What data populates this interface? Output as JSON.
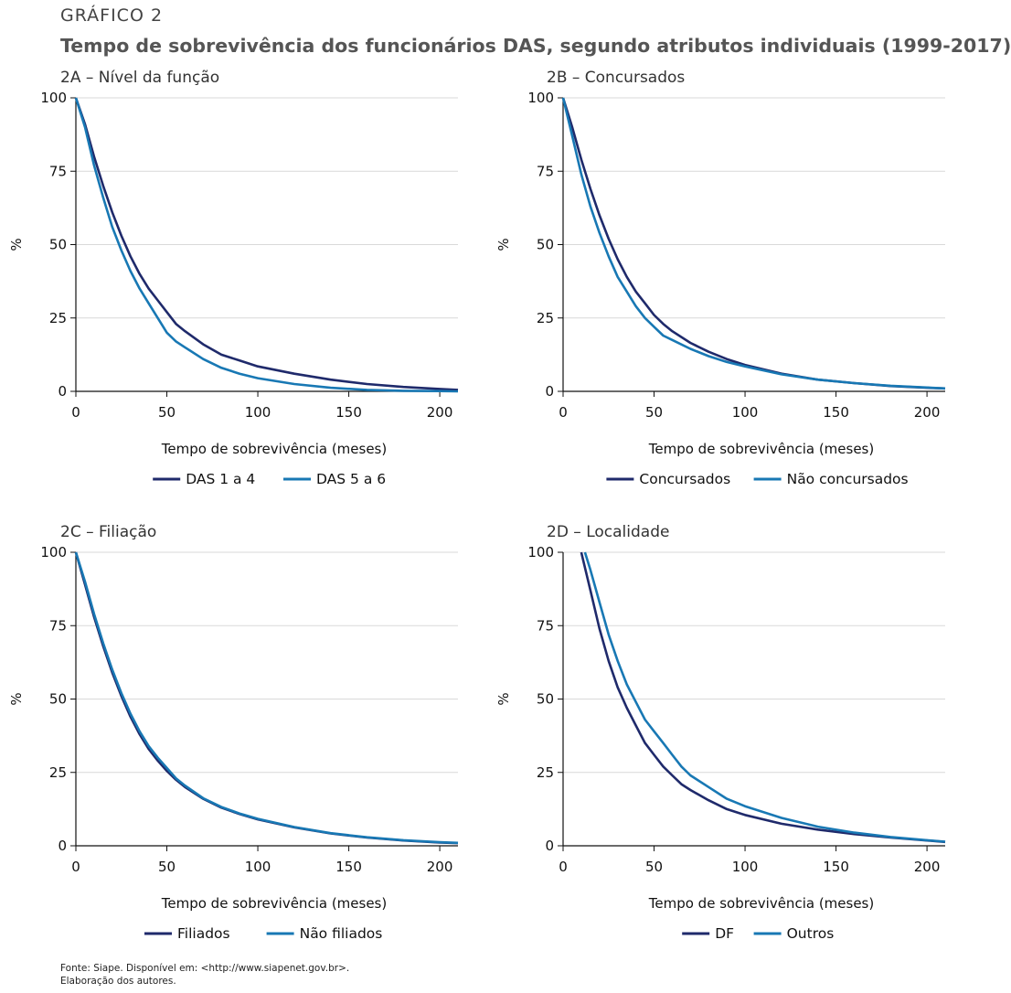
{
  "header": {
    "kicker": "GRÁFICO 2",
    "title": "Tempo de sobrevivência dos funcionários DAS, segundo atributos individuais (1999-2017)"
  },
  "footer": {
    "source": "Fonte: Siape. Disponível em: <http://www.siapenet.gov.br>.",
    "note": "Elaboração dos autores."
  },
  "colors": {
    "dark": "#1f2a6b",
    "light": "#1878b4",
    "grid": "#d9d9d9"
  },
  "chart_data": [
    {
      "type": "line",
      "title": "2A – Nível da função",
      "xlabel": "Tempo de sobrevivência (meses)",
      "ylabel": "%",
      "xlim": [
        0,
        210
      ],
      "ylim": [
        0,
        100
      ],
      "xticks": [
        0,
        50,
        100,
        150,
        200
      ],
      "yticks": [
        0,
        25,
        50,
        75,
        100
      ],
      "grid": true,
      "legend_position": "bottom",
      "series": [
        {
          "name": "DAS 1 a 4",
          "color": "#1f2a6b",
          "x": [
            0,
            5,
            10,
            15,
            20,
            25,
            30,
            35,
            40,
            45,
            50,
            55,
            60,
            70,
            80,
            90,
            100,
            120,
            140,
            160,
            180,
            200,
            210
          ],
          "y": [
            100,
            91,
            80,
            70,
            61,
            53,
            46,
            40,
            35,
            31,
            27,
            23,
            20.5,
            16,
            12.5,
            10.5,
            8.5,
            6,
            4,
            2.5,
            1.5,
            0.8,
            0.5
          ]
        },
        {
          "name": "DAS 5 a 6",
          "color": "#1878b4",
          "x": [
            0,
            5,
            10,
            15,
            20,
            25,
            30,
            35,
            40,
            45,
            50,
            55,
            60,
            70,
            80,
            90,
            100,
            120,
            140,
            160,
            180,
            200,
            210
          ],
          "y": [
            100,
            90,
            77,
            66,
            56,
            48,
            41,
            35,
            30,
            25,
            20,
            17,
            15,
            11,
            8,
            6,
            4.5,
            2.5,
            1.2,
            0.5,
            0.2,
            0.1,
            0
          ]
        }
      ]
    },
    {
      "type": "line",
      "title": "2B – Concursados",
      "xlabel": "Tempo de sobrevivência (meses)",
      "ylabel": "%",
      "xlim": [
        0,
        210
      ],
      "ylim": [
        0,
        100
      ],
      "xticks": [
        0,
        50,
        100,
        150,
        200
      ],
      "yticks": [
        0,
        25,
        50,
        75,
        100
      ],
      "grid": true,
      "legend_position": "bottom",
      "series": [
        {
          "name": "Concursados",
          "color": "#1f2a6b",
          "x": [
            0,
            5,
            10,
            15,
            20,
            25,
            30,
            35,
            40,
            45,
            50,
            55,
            60,
            70,
            80,
            90,
            100,
            120,
            140,
            160,
            180,
            200,
            210
          ],
          "y": [
            100,
            90,
            79,
            69,
            60,
            52,
            45,
            39,
            34,
            30,
            26,
            23,
            20.5,
            16.5,
            13.5,
            11,
            9,
            6,
            4,
            2.8,
            1.8,
            1.2,
            1
          ]
        },
        {
          "name": "Não concursados",
          "color": "#1878b4",
          "x": [
            0,
            5,
            10,
            15,
            20,
            25,
            30,
            35,
            40,
            45,
            50,
            55,
            60,
            70,
            80,
            90,
            100,
            120,
            140,
            160,
            180,
            200,
            210
          ],
          "y": [
            100,
            87,
            74,
            63,
            54,
            46,
            39,
            34,
            29,
            25,
            22,
            19,
            17.5,
            14.5,
            12,
            10,
            8.5,
            5.8,
            4,
            2.8,
            1.9,
            1.3,
            1
          ]
        }
      ]
    },
    {
      "type": "line",
      "title": "2C – Filiação",
      "xlabel": "Tempo de sobrevivência (meses)",
      "ylabel": "%",
      "xlim": [
        0,
        210
      ],
      "ylim": [
        0,
        100
      ],
      "xticks": [
        0,
        50,
        100,
        150,
        200
      ],
      "yticks": [
        0,
        25,
        50,
        75,
        100
      ],
      "grid": true,
      "legend_position": "bottom",
      "series": [
        {
          "name": "Filiados",
          "color": "#1f2a6b",
          "x": [
            0,
            5,
            10,
            15,
            20,
            25,
            30,
            35,
            40,
            45,
            50,
            55,
            60,
            70,
            80,
            90,
            100,
            120,
            140,
            160,
            180,
            200,
            210
          ],
          "y": [
            100,
            89,
            78,
            68,
            59,
            51,
            44,
            38,
            33,
            29,
            25.5,
            22.5,
            20,
            16,
            13,
            10.8,
            9,
            6.3,
            4.2,
            2.8,
            1.8,
            1.1,
            0.9
          ]
        },
        {
          "name": "Não filiados",
          "color": "#1878b4",
          "x": [
            0,
            5,
            10,
            15,
            20,
            25,
            30,
            35,
            40,
            45,
            50,
            55,
            60,
            70,
            80,
            90,
            100,
            120,
            140,
            160,
            180,
            200,
            210
          ],
          "y": [
            100,
            90,
            79,
            69,
            60,
            52,
            45,
            39,
            34,
            30,
            26.5,
            23,
            20.5,
            16.2,
            13.2,
            11,
            9.2,
            6.4,
            4.3,
            2.9,
            1.9,
            1.2,
            1
          ]
        }
      ]
    },
    {
      "type": "line",
      "title": "2D – Localidade",
      "xlabel": "Tempo de sobrevivência (meses)",
      "ylabel": "%",
      "xlim": [
        0,
        210
      ],
      "ylim": [
        0,
        100
      ],
      "xticks": [
        0,
        50,
        100,
        150,
        200
      ],
      "yticks": [
        0,
        25,
        50,
        75,
        100
      ],
      "grid": true,
      "legend_position": "bottom",
      "series": [
        {
          "name": "DF",
          "color": "#1f2a6b",
          "x": [
            10,
            15,
            20,
            25,
            30,
            35,
            40,
            45,
            50,
            55,
            60,
            65,
            70,
            80,
            90,
            100,
            120,
            140,
            160,
            180,
            200,
            210
          ],
          "y": [
            100,
            87,
            74,
            63,
            54,
            47,
            41,
            35,
            31,
            27,
            24,
            21,
            19,
            15.5,
            12.5,
            10.5,
            7.5,
            5.5,
            4,
            2.8,
            1.8,
            1.3
          ]
        },
        {
          "name": "Outros",
          "color": "#1878b4",
          "x": [
            12,
            15,
            20,
            25,
            30,
            35,
            40,
            45,
            50,
            55,
            60,
            65,
            70,
            80,
            90,
            100,
            120,
            140,
            160,
            180,
            200,
            210
          ],
          "y": [
            100,
            94,
            83,
            72,
            63,
            55,
            49,
            43,
            39,
            35,
            31,
            27,
            24,
            20,
            16,
            13.5,
            9.5,
            6.5,
            4.5,
            3,
            1.9,
            1.4
          ]
        }
      ]
    }
  ]
}
